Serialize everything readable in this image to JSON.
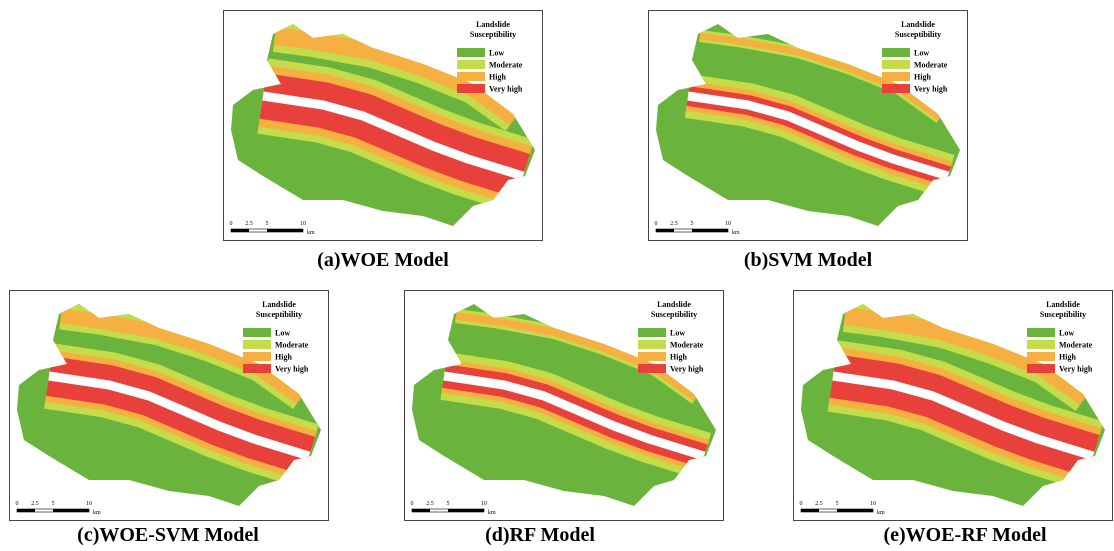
{
  "panels": [
    {
      "caption": "(a)WOE Model",
      "legend": {
        "title_lines": [
          "Landslide",
          "Susceptibility"
        ],
        "classes": [
          {
            "label": "Low",
            "color": "#6ab43e"
          },
          {
            "label": "Moderate",
            "color": "#c5dc4a"
          },
          {
            "label": "High",
            "color": "#f5b041"
          },
          {
            "label": "Very high",
            "color": "#e8413c"
          }
        ]
      },
      "scale_labels": [
        "0",
        "2.5",
        "5",
        "10",
        "km"
      ]
    },
    {
      "caption": "(b)SVM Model",
      "legend": {
        "title_lines": [
          "Landslide",
          "Susceptibility"
        ],
        "classes": [
          {
            "label": "Low",
            "color": "#6ab43e"
          },
          {
            "label": "Moderate",
            "color": "#c5dc4a"
          },
          {
            "label": "High",
            "color": "#f5b041"
          },
          {
            "label": "Very high",
            "color": "#e8413c"
          }
        ]
      },
      "scale_labels": [
        "0",
        "2.5",
        "5",
        "10",
        "km"
      ]
    },
    {
      "caption": "(c)WOE-SVM Model",
      "legend": {
        "title_lines": [
          "Landslide",
          "Susceptibility"
        ],
        "classes": [
          {
            "label": "Low",
            "color": "#6ab43e"
          },
          {
            "label": "Moderate",
            "color": "#c5dc4a"
          },
          {
            "label": "High",
            "color": "#f5b041"
          },
          {
            "label": "Very high",
            "color": "#e8413c"
          }
        ]
      },
      "scale_labels": [
        "0",
        "2.5",
        "5",
        "10",
        "km"
      ]
    },
    {
      "caption": "(d)RF Model",
      "legend": {
        "title_lines": [
          "Landslide",
          "Susceptibility"
        ],
        "classes": [
          {
            "label": "Low",
            "color": "#6ab43e"
          },
          {
            "label": "Moderate",
            "color": "#c5dc4a"
          },
          {
            "label": "High",
            "color": "#f5b041"
          },
          {
            "label": "Very high",
            "color": "#e8413c"
          }
        ]
      },
      "scale_labels": [
        "0",
        "2.5",
        "5",
        "10",
        "km"
      ]
    },
    {
      "caption": "(e)WOE-RF Model",
      "legend": {
        "title_lines": [
          "Landslide",
          "Susceptibility"
        ],
        "classes": [
          {
            "label": "Low",
            "color": "#6ab43e"
          },
          {
            "label": "Moderate",
            "color": "#c5dc4a"
          },
          {
            "label": "High",
            "color": "#f5b041"
          },
          {
            "label": "Very high",
            "color": "#e8413c"
          }
        ]
      },
      "scale_labels": [
        "0",
        "2.5",
        "5",
        "10",
        "km"
      ]
    }
  ]
}
